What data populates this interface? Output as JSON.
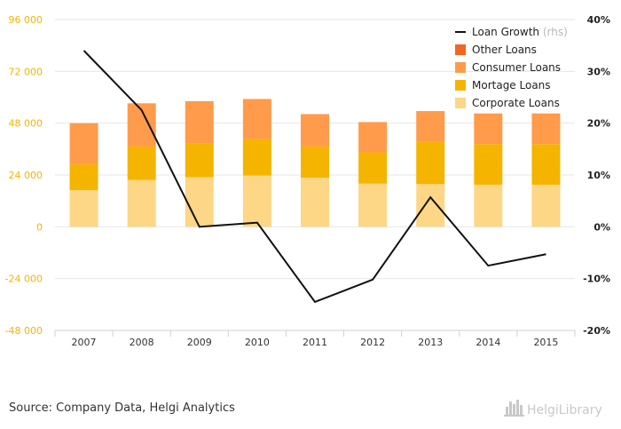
{
  "chart_data": {
    "type": "bar",
    "categories": [
      "2007",
      "2008",
      "2009",
      "2010",
      "2011",
      "2012",
      "2013",
      "2014",
      "2015"
    ],
    "stacked": true,
    "series": [
      {
        "name": "Corporate Loans",
        "color": "#fdd686",
        "values": [
          17000,
          21700,
          23000,
          23700,
          22700,
          20000,
          19800,
          19500,
          19500
        ]
      },
      {
        "name": "Mortage Loans",
        "color": "#f5b400",
        "values": [
          12000,
          15500,
          15500,
          17000,
          14500,
          14500,
          19500,
          18800,
          18800
        ]
      },
      {
        "name": "Consumer Loans",
        "color": "#ff9b4a",
        "values": [
          19000,
          20000,
          19700,
          18500,
          15000,
          14000,
          14300,
          14200,
          14200
        ]
      },
      {
        "name": "Other Loans",
        "color": "#f26522",
        "values": [
          0,
          0,
          0,
          0,
          0,
          0,
          0,
          0,
          0
        ]
      }
    ],
    "line_series": {
      "name": "Loan Growth",
      "axis_note": "(rhs)",
      "color": "#111111",
      "axis": "right",
      "values": [
        34.0,
        22.5,
        0.0,
        0.8,
        -14.5,
        -10.2,
        5.7,
        -7.5,
        -5.3
      ]
    },
    "left_axis": {
      "min": -48000,
      "max": 96000,
      "ticks": [
        96000,
        72000,
        48000,
        24000,
        0,
        -24000,
        -48000
      ],
      "tick_labels": [
        "96 000",
        "72 000",
        "48 000",
        "24 000",
        "0",
        "-24 000",
        "-48 000"
      ]
    },
    "right_axis": {
      "min": -20,
      "max": 40,
      "ticks": [
        40,
        30,
        20,
        10,
        0,
        -10,
        -20
      ],
      "tick_labels": [
        "40%",
        "30%",
        "20%",
        "10%",
        "0%",
        "-10%",
        "-20%"
      ]
    },
    "legend_order": [
      "Loan Growth",
      "Other Loans",
      "Consumer Loans",
      "Mortage Loans",
      "Corporate Loans"
    ],
    "legend_position": "top-right",
    "grid": true
  },
  "source": "Source: Company Data, Helgi Analytics",
  "logo": {
    "text": "HelgiLibrary",
    "icon": "library-skyline-icon"
  }
}
